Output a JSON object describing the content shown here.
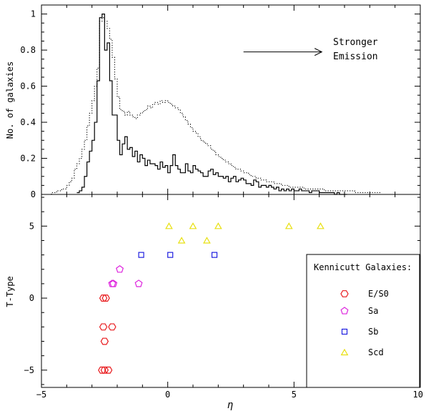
{
  "chart_data": [
    {
      "type": "line",
      "panel": "top",
      "xlim": [
        -5,
        10
      ],
      "ylim": [
        0,
        1.05
      ],
      "ylabel": "No. of galaxies",
      "yticks": [
        "0",
        "0.2",
        "0.4",
        "0.6",
        "0.8",
        "1"
      ],
      "annotation": {
        "line1": "Stronger",
        "line2": "Emission",
        "arrow_from_x": 3.0,
        "arrow_to_x": 6.1,
        "arrow_y": 0.79
      },
      "series": [
        {
          "style": "solid-step",
          "x": [
            -3.6,
            -3.5,
            -3.4,
            -3.3,
            -3.2,
            -3.1,
            -3.0,
            -2.9,
            -2.8,
            -2.7,
            -2.6,
            -2.5,
            -2.4,
            -2.3,
            -2.2,
            -2.1,
            -2.0,
            -1.9,
            -1.8,
            -1.7,
            -1.6,
            -1.5,
            -1.4,
            -1.3,
            -1.2,
            -1.1,
            -1.0,
            -0.9,
            -0.8,
            -0.7,
            -0.6,
            -0.5,
            -0.4,
            -0.3,
            -0.2,
            -0.1,
            0.0,
            0.1,
            0.2,
            0.3,
            0.4,
            0.5,
            0.6,
            0.7,
            0.8,
            0.9,
            1.0,
            1.1,
            1.2,
            1.3,
            1.4,
            1.5,
            1.6,
            1.7,
            1.8,
            1.9,
            2.0,
            2.1,
            2.2,
            2.3,
            2.4,
            2.5,
            2.6,
            2.7,
            2.8,
            2.9,
            3.0,
            3.1,
            3.2,
            3.3,
            3.4,
            3.5,
            3.6,
            3.7,
            3.8,
            3.9,
            4.0,
            4.1,
            4.2,
            4.3,
            4.4,
            4.5,
            4.6,
            4.7,
            4.8,
            4.9,
            5.0,
            5.1,
            5.2,
            5.3,
            5.4,
            5.5,
            5.6,
            5.7,
            5.8,
            5.9,
            6.0,
            6.1,
            6.2,
            6.3,
            6.4,
            6.5,
            6.6,
            6.7,
            6.8,
            6.9,
            7.0
          ],
          "y": [
            0.01,
            0.02,
            0.04,
            0.1,
            0.18,
            0.24,
            0.3,
            0.4,
            0.63,
            0.98,
            1.0,
            0.8,
            0.84,
            0.63,
            0.44,
            0.44,
            0.3,
            0.22,
            0.28,
            0.32,
            0.25,
            0.26,
            0.21,
            0.24,
            0.18,
            0.22,
            0.2,
            0.16,
            0.19,
            0.17,
            0.17,
            0.16,
            0.14,
            0.18,
            0.15,
            0.16,
            0.12,
            0.16,
            0.22,
            0.16,
            0.14,
            0.12,
            0.12,
            0.17,
            0.13,
            0.12,
            0.16,
            0.14,
            0.13,
            0.12,
            0.1,
            0.1,
            0.13,
            0.14,
            0.11,
            0.12,
            0.1,
            0.1,
            0.09,
            0.1,
            0.07,
            0.09,
            0.1,
            0.07,
            0.08,
            0.09,
            0.08,
            0.06,
            0.06,
            0.05,
            0.08,
            0.07,
            0.04,
            0.05,
            0.05,
            0.04,
            0.05,
            0.04,
            0.03,
            0.04,
            0.02,
            0.03,
            0.02,
            0.03,
            0.02,
            0.03,
            0.02,
            0.02,
            0.03,
            0.02,
            0.02,
            0.02,
            0.01,
            0.02,
            0.02,
            0.02,
            0.01,
            0.01,
            0.01,
            0.01,
            0.01,
            0.01,
            0.0,
            0.01,
            0.0,
            0.0,
            0.0
          ]
        },
        {
          "style": "dotted-step",
          "x": [
            -4.8,
            -4.6,
            -4.4,
            -4.2,
            -4.0,
            -3.9,
            -3.8,
            -3.7,
            -3.6,
            -3.5,
            -3.4,
            -3.3,
            -3.2,
            -3.1,
            -3.0,
            -2.9,
            -2.8,
            -2.7,
            -2.6,
            -2.5,
            -2.4,
            -2.3,
            -2.2,
            -2.1,
            -2.0,
            -1.9,
            -1.8,
            -1.7,
            -1.6,
            -1.5,
            -1.4,
            -1.3,
            -1.2,
            -1.1,
            -1.0,
            -0.9,
            -0.8,
            -0.7,
            -0.6,
            -0.5,
            -0.4,
            -0.3,
            -0.2,
            -0.1,
            0.0,
            0.1,
            0.2,
            0.3,
            0.4,
            0.5,
            0.6,
            0.7,
            0.8,
            0.9,
            1.0,
            1.1,
            1.2,
            1.3,
            1.4,
            1.5,
            1.6,
            1.7,
            1.8,
            1.9,
            2.0,
            2.1,
            2.2,
            2.3,
            2.4,
            2.5,
            2.6,
            2.7,
            2.8,
            2.9,
            3.0,
            3.1,
            3.2,
            3.3,
            3.4,
            3.5,
            3.6,
            3.7,
            3.8,
            3.9,
            4.0,
            4.1,
            4.2,
            4.3,
            4.4,
            4.5,
            4.6,
            4.7,
            4.8,
            4.9,
            5.0,
            5.2,
            5.4,
            5.6,
            5.8,
            6.0,
            6.2,
            6.4,
            6.6,
            6.8,
            7.0,
            7.2,
            7.4,
            7.6,
            7.8,
            8.0,
            8.2,
            8.4
          ],
          "y": [
            0.0,
            0.01,
            0.02,
            0.03,
            0.05,
            0.07,
            0.09,
            0.14,
            0.17,
            0.2,
            0.25,
            0.3,
            0.38,
            0.45,
            0.52,
            0.6,
            0.7,
            0.96,
            0.98,
            0.96,
            0.92,
            0.86,
            0.76,
            0.64,
            0.54,
            0.47,
            0.46,
            0.44,
            0.46,
            0.44,
            0.43,
            0.42,
            0.44,
            0.45,
            0.46,
            0.47,
            0.49,
            0.48,
            0.5,
            0.51,
            0.5,
            0.52,
            0.51,
            0.52,
            0.51,
            0.5,
            0.49,
            0.48,
            0.47,
            0.45,
            0.43,
            0.41,
            0.39,
            0.37,
            0.35,
            0.34,
            0.32,
            0.3,
            0.29,
            0.28,
            0.27,
            0.25,
            0.24,
            0.22,
            0.21,
            0.2,
            0.19,
            0.18,
            0.17,
            0.16,
            0.15,
            0.14,
            0.14,
            0.13,
            0.12,
            0.12,
            0.11,
            0.1,
            0.1,
            0.09,
            0.09,
            0.08,
            0.08,
            0.07,
            0.07,
            0.07,
            0.06,
            0.06,
            0.06,
            0.05,
            0.05,
            0.05,
            0.04,
            0.04,
            0.04,
            0.04,
            0.03,
            0.03,
            0.03,
            0.03,
            0.02,
            0.02,
            0.02,
            0.02,
            0.02,
            0.02,
            0.01,
            0.01,
            0.01,
            0.01,
            0.01,
            0.0
          ]
        }
      ]
    },
    {
      "type": "scatter",
      "panel": "bottom",
      "xlim": [
        -5,
        10
      ],
      "ylim": [
        -6.2,
        7.2
      ],
      "xlabel": "η",
      "ylabel": "T-Type",
      "xticks": [
        "−5",
        "0",
        "5",
        "10"
      ],
      "yticks": [
        "−5",
        "0",
        "5"
      ],
      "legend": {
        "title": "Kennicutt Galaxies:",
        "placement": "bottom-right",
        "entries": [
          {
            "label": "E/S0",
            "marker": "hexagon",
            "color": "#e8191c"
          },
          {
            "label": "Sa",
            "marker": "pentagon",
            "color": "#dd22dd"
          },
          {
            "label": "Sb",
            "marker": "square",
            "color": "#1f1fe0"
          },
          {
            "label": "Scd",
            "marker": "triangle",
            "color": "#e8e010"
          }
        ]
      },
      "series": [
        {
          "name": "E/S0",
          "marker": "hexagon",
          "color": "#e8191c",
          "points": [
            [
              -2.6,
              -5
            ],
            [
              -2.5,
              -5
            ],
            [
              -2.35,
              -5
            ],
            [
              -2.5,
              -3
            ],
            [
              -2.55,
              -2
            ],
            [
              -2.2,
              -2
            ],
            [
              -2.55,
              0
            ],
            [
              -2.45,
              0
            ]
          ]
        },
        {
          "name": "Sa",
          "marker": "pentagon",
          "color": "#dd22dd",
          "points": [
            [
              -1.9,
              2
            ],
            [
              -2.2,
              1
            ],
            [
              -2.15,
              1
            ],
            [
              -1.15,
              1
            ]
          ]
        },
        {
          "name": "Sb",
          "marker": "square",
          "color": "#1f1fe0",
          "points": [
            [
              -1.05,
              3
            ],
            [
              0.1,
              3
            ],
            [
              1.85,
              3
            ]
          ]
        },
        {
          "name": "Scd",
          "marker": "triangle",
          "color": "#e8e010",
          "points": [
            [
              0.05,
              5
            ],
            [
              1.0,
              5
            ],
            [
              2.0,
              5
            ],
            [
              4.8,
              5
            ],
            [
              6.05,
              5
            ],
            [
              0.55,
              4
            ],
            [
              1.55,
              4
            ]
          ]
        }
      ]
    }
  ]
}
